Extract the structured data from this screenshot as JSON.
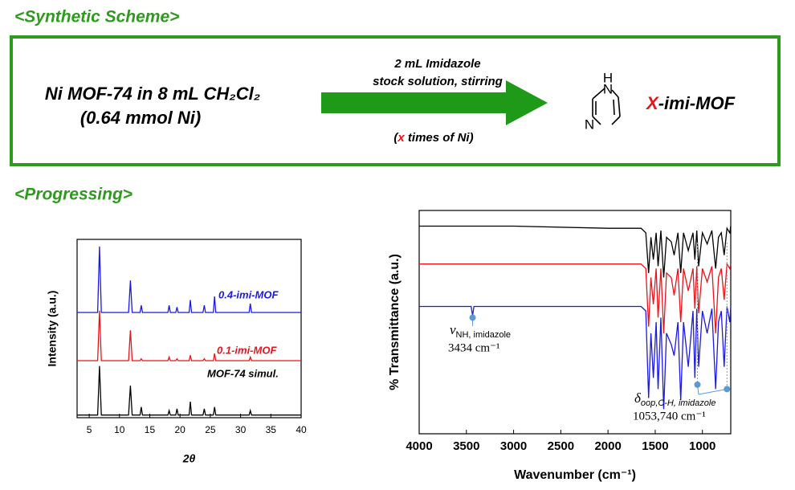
{
  "scheme": {
    "title": "<Synthetic Scheme>",
    "reactant": [
      "Ni MOF-74 in 8 mL CH₂Cl₂",
      "(0.64 mmol Ni)"
    ],
    "conditions": [
      "2 mL Imidazole",
      "stock solution, stirring"
    ],
    "ratio": [
      "(",
      "x",
      " times of Ni)"
    ],
    "atoms": [
      "H",
      "N",
      "N"
    ],
    "product": [
      "X",
      "-imi-MOF"
    ]
  },
  "progress_title": "<Progressing>",
  "chart_data": [
    {
      "type": "line",
      "xlabel": "2θ",
      "ylabel": "Intensity (a.u.)",
      "xlim": [
        3,
        40
      ],
      "xticks": [
        5,
        10,
        15,
        20,
        25,
        30,
        35,
        40
      ],
      "ylim": [
        0,
        100
      ],
      "series": [
        {
          "name": "MOF-74 simul.",
          "color": "#000000",
          "x": [
            3,
            6.4,
            6.7,
            7.0,
            11.5,
            11.8,
            12.1,
            13.4,
            13.6,
            13.8,
            18,
            18.2,
            18.4,
            19.3,
            19.5,
            19.7,
            21.5,
            21.7,
            21.9,
            23.8,
            24,
            24.2,
            25.5,
            25.7,
            25.9,
            31.4,
            31.6,
            31.8,
            40
          ],
          "values": [
            1.5,
            1.5,
            29,
            1.5,
            1.5,
            18,
            1.5,
            1.5,
            6,
            1.5,
            1.5,
            4,
            1.5,
            1.5,
            5,
            1.5,
            1.5,
            9,
            1.5,
            1.5,
            5,
            1.5,
            1.5,
            6,
            1.5,
            1.5,
            4,
            1.5,
            1.5
          ]
        },
        {
          "name": "0.1-imi-MOF",
          "color": "#e8141b",
          "x": [
            3,
            6.4,
            6.7,
            7.0,
            11.5,
            11.8,
            12.1,
            13.4,
            13.6,
            13.8,
            18,
            18.2,
            18.4,
            19.3,
            19.5,
            19.7,
            21.5,
            21.7,
            21.9,
            23.8,
            24,
            24.2,
            25.5,
            25.7,
            25.9,
            31.4,
            31.6,
            31.8,
            40
          ],
          "values": [
            32,
            32,
            60,
            32,
            32,
            49,
            32,
            32,
            33,
            32,
            32,
            34,
            32,
            32,
            33,
            32,
            32,
            35,
            32,
            32,
            33,
            32,
            32,
            36,
            32,
            32,
            34,
            32,
            32
          ]
        },
        {
          "name": "0.4-imi-MOF",
          "color": "#1a1ae0",
          "x": [
            3,
            6.4,
            6.7,
            7.0,
            11.5,
            11.8,
            12.1,
            13.4,
            13.6,
            13.8,
            18,
            18.2,
            18.4,
            19.3,
            19.5,
            19.7,
            21.5,
            21.7,
            21.9,
            23.8,
            24,
            24.2,
            25.5,
            25.7,
            25.9,
            31.4,
            31.6,
            31.8,
            40
          ],
          "values": [
            59,
            59,
            96,
            59,
            59,
            77,
            59,
            59,
            63,
            59,
            59,
            63,
            59,
            59,
            62,
            59,
            59,
            66,
            59,
            59,
            63,
            59,
            59,
            68,
            59,
            59,
            64,
            59,
            59
          ]
        }
      ]
    },
    {
      "type": "line",
      "xlabel": "Wavenumber (cm⁻¹)",
      "ylabel": "% Transmittance (a.u.)",
      "xlim": [
        4000,
        700
      ],
      "xticks": [
        4000,
        3500,
        3000,
        2500,
        2000,
        1500,
        1000
      ],
      "ylim": [
        0,
        100
      ],
      "series": [
        {
          "color": "#000000",
          "x": [
            4000,
            3500,
            3000,
            2000,
            1650,
            1600,
            1570,
            1545,
            1520,
            1490,
            1470,
            1440,
            1410,
            1380,
            1330,
            1300,
            1260,
            1230,
            1200,
            1150,
            1100,
            1080,
            1060,
            1040,
            1000,
            950,
            900,
            860,
            830,
            800,
            770,
            740,
            710,
            700
          ],
          "values": [
            93,
            93,
            93,
            92,
            92,
            90,
            72,
            88,
            78,
            90,
            75,
            91,
            70,
            88,
            86,
            80,
            90,
            72,
            90,
            82,
            90,
            78,
            91,
            75,
            90,
            85,
            91,
            74,
            88,
            90,
            80,
            92,
            90,
            93
          ]
        },
        {
          "color": "#e8141b",
          "x": [
            4000,
            3500,
            3000,
            2000,
            1650,
            1600,
            1570,
            1545,
            1520,
            1490,
            1470,
            1440,
            1410,
            1380,
            1330,
            1300,
            1260,
            1230,
            1200,
            1150,
            1100,
            1080,
            1060,
            1040,
            1000,
            950,
            900,
            860,
            830,
            800,
            770,
            740,
            710,
            700
          ],
          "values": [
            76,
            76,
            76,
            76,
            76,
            74,
            48,
            70,
            58,
            74,
            52,
            74,
            45,
            72,
            70,
            62,
            74,
            50,
            74,
            64,
            74,
            56,
            75,
            54,
            74,
            68,
            75,
            45,
            70,
            74,
            60,
            76,
            74,
            76
          ]
        },
        {
          "color": "#1a1ae0",
          "x": [
            4000,
            3500,
            3450,
            3434,
            3420,
            3000,
            2000,
            1650,
            1600,
            1570,
            1545,
            1520,
            1490,
            1470,
            1440,
            1410,
            1380,
            1330,
            1300,
            1260,
            1230,
            1200,
            1150,
            1100,
            1080,
            1060,
            1040,
            1000,
            950,
            900,
            860,
            830,
            800,
            770,
            740,
            710,
            700
          ],
          "values": [
            57,
            57,
            57,
            53,
            57,
            57,
            57,
            57,
            55,
            16,
            45,
            25,
            50,
            20,
            52,
            11,
            45,
            40,
            35,
            50,
            15,
            50,
            30,
            55,
            25,
            56,
            30,
            55,
            45,
            56,
            20,
            50,
            55,
            30,
            57,
            50,
            57
          ]
        }
      ],
      "annotations": [
        {
          "symbol": "ν",
          "sub": "NH, imidazole",
          "text": "3434 cm⁻¹",
          "points": [
            {
              "x": 3434,
              "y": 52
            }
          ]
        },
        {
          "symbol": "δ",
          "sub": "oop,C-H, imidazole",
          "text": "1053,740 cm⁻¹",
          "points": [
            {
              "x": 1053,
              "y": 22
            },
            {
              "x": 740,
              "y": 20
            }
          ]
        }
      ]
    }
  ]
}
